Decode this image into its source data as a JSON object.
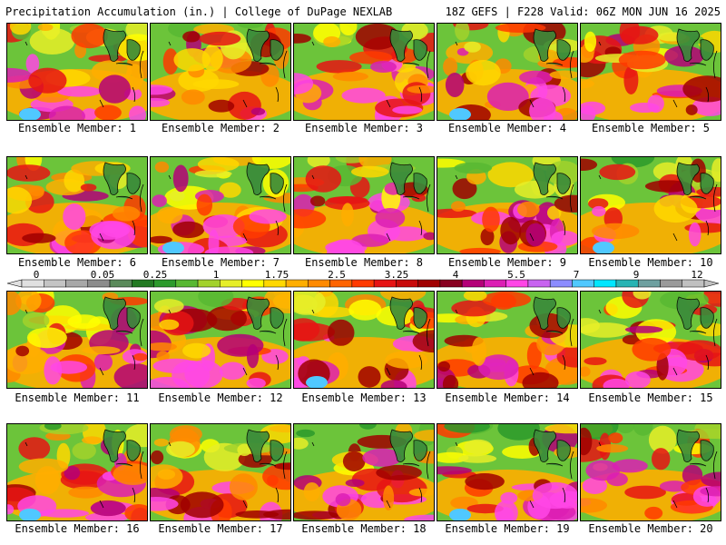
{
  "header": {
    "left": "Precipitation Accumulation (in.) | College of DuPage NEXLAB",
    "right": "18Z GEFS | F228 Valid: 06Z MON JUN 16 2025"
  },
  "colorbar": {
    "tick_labels": [
      "0",
      "0.05",
      "0.25",
      "1",
      "1.75",
      "2.5",
      "3.25",
      "4",
      "5.5",
      "7",
      "9",
      "12"
    ],
    "colors": [
      "#e0e0e0",
      "#c4c4c4",
      "#a8a8a8",
      "#8c8c8c",
      "#5a8a5a",
      "#227a22",
      "#2c9a2c",
      "#58b832",
      "#a2d22c",
      "#e6ee28",
      "#ffff00",
      "#ffd800",
      "#ffae00",
      "#ff8a00",
      "#ff6400",
      "#ff3a00",
      "#e61414",
      "#c80a0a",
      "#a00000",
      "#880020",
      "#b40078",
      "#dc1eb4",
      "#ff46e6",
      "#c864f0",
      "#8c8cff",
      "#50c8ff",
      "#00e6ff",
      "#28b4b4",
      "#6ea0a0",
      "#9a9a9a",
      "#c0c0c0"
    ]
  },
  "panels": [
    {
      "label": "Ensemble Member: 1"
    },
    {
      "label": "Ensemble Member: 2"
    },
    {
      "label": "Ensemble Member: 3"
    },
    {
      "label": "Ensemble Member: 4"
    },
    {
      "label": "Ensemble Member: 5"
    },
    {
      "label": "Ensemble Member: 6"
    },
    {
      "label": "Ensemble Member: 7"
    },
    {
      "label": "Ensemble Member: 8"
    },
    {
      "label": "Ensemble Member: 9"
    },
    {
      "label": "Ensemble Member: 10"
    },
    {
      "label": "Ensemble Member: 11"
    },
    {
      "label": "Ensemble Member: 12"
    },
    {
      "label": "Ensemble Member: 13"
    },
    {
      "label": "Ensemble Member: 14"
    },
    {
      "label": "Ensemble Member: 15"
    },
    {
      "label": "Ensemble Member: 16"
    },
    {
      "label": "Ensemble Member: 17"
    },
    {
      "label": "Ensemble Member: 18"
    },
    {
      "label": "Ensemble Member: 19"
    },
    {
      "label": "Ensemble Member: 20"
    }
  ]
}
